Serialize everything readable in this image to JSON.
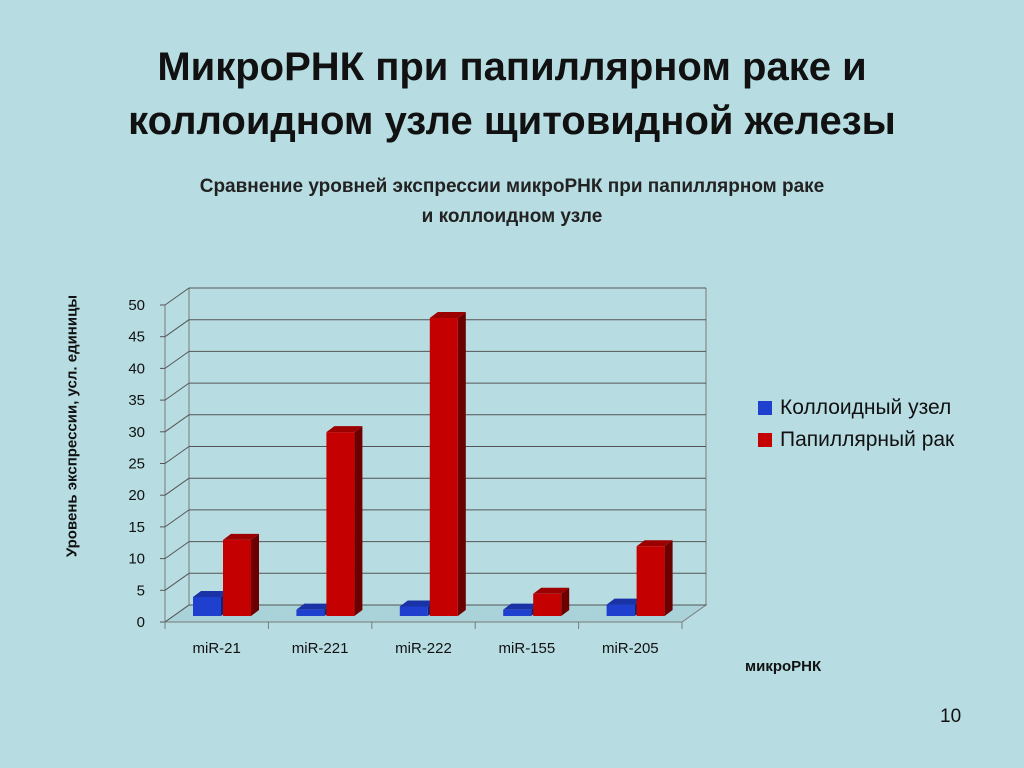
{
  "slide": {
    "title_line1": "МикроРНК при папиллярном раке и",
    "title_line2": "коллоидном узле щитовидной железы",
    "page_number": "10"
  },
  "chart_data": {
    "type": "bar",
    "title_line1": "Сравнение уровней экспрессии микроРНК при папиллярном раке",
    "title_line2": "и коллоидном узле",
    "xlabel": "микроРНК",
    "ylabel": "Уровень экспрессии, усл. единицы",
    "categories": [
      "miR-21",
      "miR-221",
      "miR-222",
      "miR-155",
      "miR-205"
    ],
    "series": [
      {
        "name": "Коллоидный узел",
        "values": [
          3,
          1,
          1.5,
          1,
          1.8
        ],
        "color": "#1f3fcf"
      },
      {
        "name": "Папиллярный рак",
        "values": [
          12,
          29,
          47,
          3.5,
          11
        ],
        "color": "#c40000"
      }
    ],
    "ylim": [
      0,
      50
    ],
    "yticks": [
      0,
      5,
      10,
      15,
      20,
      25,
      30,
      35,
      40,
      45,
      50
    ],
    "grid": true,
    "legend_position": "right"
  }
}
